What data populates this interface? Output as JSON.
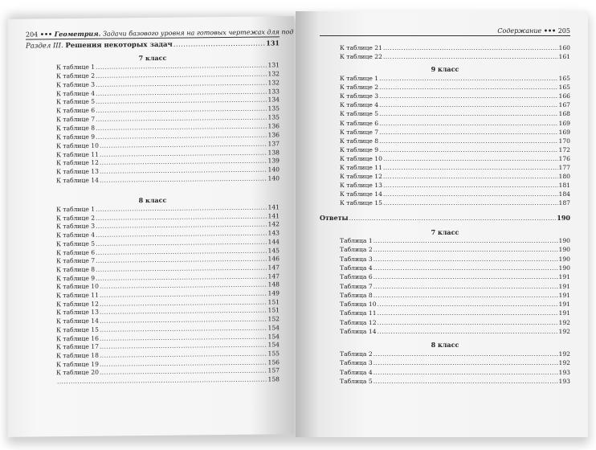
{
  "left_page": {
    "page_number": "204",
    "header_title": "Геометрия.",
    "header_subtitle": "Задачи базового уровня на готовых чертежах для подготовки к ОГЭ и ЕГЭ",
    "section_prefix": "Раздел III.",
    "section_title": "Решения некоторых задач",
    "section_page": "131",
    "grade7": {
      "heading": "7 класс",
      "items": [
        [
          "К таблице 1",
          "131"
        ],
        [
          "К таблице 2",
          "132"
        ],
        [
          "К таблице 3",
          "132"
        ],
        [
          "К таблице 4",
          "133"
        ],
        [
          "К таблице 5",
          "134"
        ],
        [
          "К таблице 6",
          "135"
        ],
        [
          "К таблице 7",
          "135"
        ],
        [
          "К таблице 8",
          "136"
        ],
        [
          "К таблице 9",
          "136"
        ],
        [
          "К таблице 10",
          "137"
        ],
        [
          "К таблице 11",
          "138"
        ],
        [
          "К таблице 12",
          "139"
        ],
        [
          "К таблице 13",
          "140"
        ],
        [
          "К таблице 14",
          "140"
        ]
      ]
    },
    "grade8": {
      "heading": "8 класс",
      "items": [
        [
          "К таблице 1",
          "141"
        ],
        [
          "К таблице 2",
          "141"
        ],
        [
          "К таблице 3",
          "142"
        ],
        [
          "К таблице 4",
          "143"
        ],
        [
          "К таблице 5",
          "144"
        ],
        [
          "К таблице 6",
          "145"
        ],
        [
          "К таблице 7",
          "146"
        ],
        [
          "К таблице 8",
          "147"
        ],
        [
          "К таблице 9",
          "147"
        ],
        [
          "К таблице 10",
          "148"
        ],
        [
          "К таблице 11",
          "149"
        ],
        [
          "К таблице 12",
          "151"
        ],
        [
          "К таблице 13",
          "151"
        ],
        [
          "К таблице 14",
          "152"
        ],
        [
          "К таблице 15",
          "154"
        ],
        [
          "К таблице 16",
          "154"
        ],
        [
          "К таблице 17",
          "154"
        ],
        [
          "К таблице 18",
          "155"
        ],
        [
          "К таблице 19",
          "156"
        ],
        [
          "К таблице 20",
          "157"
        ],
        [
          "",
          "158"
        ]
      ]
    }
  },
  "right_page": {
    "page_number": "205",
    "header_title": "Содержание",
    "cont8": {
      "items": [
        [
          "К таблице 21",
          "160"
        ],
        [
          "К таблице 22",
          "161"
        ]
      ]
    },
    "grade9": {
      "heading": "9 класс",
      "items": [
        [
          "К таблице 1",
          "165"
        ],
        [
          "К таблице 2",
          "165"
        ],
        [
          "К таблице 3",
          "166"
        ],
        [
          "К таблице 4",
          "167"
        ],
        [
          "К таблице 5",
          "168"
        ],
        [
          "К таблице 6",
          "169"
        ],
        [
          "К таблице 7",
          "169"
        ],
        [
          "К таблице 8",
          "170"
        ],
        [
          "К таблице 9",
          "172"
        ],
        [
          "К таблице 10",
          "176"
        ],
        [
          "К таблице 11",
          "177"
        ],
        [
          "К таблице 12",
          "180"
        ],
        [
          "К таблице 13",
          "181"
        ],
        [
          "К таблице 14",
          "184"
        ],
        [
          "К таблице 15",
          "187"
        ]
      ]
    },
    "answers_title": "Ответы",
    "answers_page": "190",
    "ans7": {
      "heading": "7 класс",
      "items": [
        [
          "Таблица 1",
          "190"
        ],
        [
          "Таблица 2",
          "190"
        ],
        [
          "Таблица 3",
          "190"
        ],
        [
          "Таблица 4",
          "190"
        ],
        [
          "Таблица 6",
          "191"
        ],
        [
          "Таблица 7",
          "191"
        ],
        [
          "Таблица 8",
          "191"
        ],
        [
          "Таблица 10",
          "191"
        ],
        [
          "Таблица 11",
          "191"
        ],
        [
          "Таблица 12",
          "192"
        ],
        [
          "Таблица 14",
          "192"
        ]
      ]
    },
    "ans8": {
      "heading": "8 класс",
      "items": [
        [
          "Таблица 2",
          "192"
        ],
        [
          "Таблица 3",
          "192"
        ],
        [
          "Таблица 4",
          "193"
        ],
        [
          "Таблица 5",
          "193"
        ]
      ]
    }
  }
}
